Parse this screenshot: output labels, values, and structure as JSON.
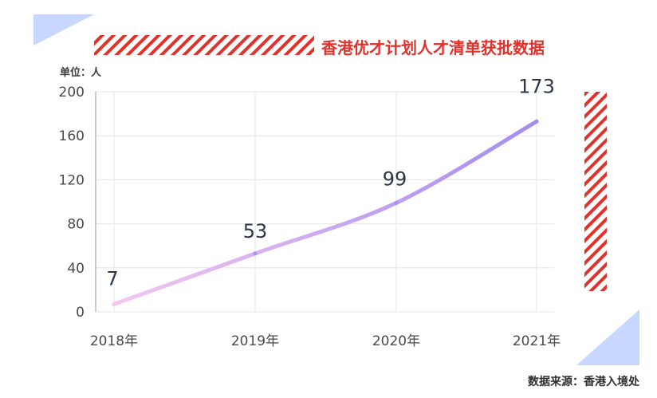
{
  "header": {
    "title": "香港优才计划人才清单获批数据",
    "unit_label": "单位：人"
  },
  "footer": {
    "source": "数据来源：香港入境处"
  },
  "colors": {
    "title_red": "#e0312b",
    "hatch_red": "#e0312b",
    "corner_blue": "#c7d7ff",
    "line_start": "#f4c7f1",
    "line_end": "#a48cf0",
    "axis_text": "#4a4a4a",
    "label_text": "#2b3548",
    "grid": "#e6e6e6"
  },
  "chart_data": {
    "type": "line",
    "title": "香港优才计划人才清单获批数据",
    "xlabel": "",
    "ylabel": "单位：人",
    "categories": [
      "2018年",
      "2019年",
      "2020年",
      "2021年"
    ],
    "values": [
      7,
      53,
      99,
      173
    ],
    "data_labels": [
      "7",
      "53",
      "99",
      "173"
    ],
    "yticks": [
      0,
      40,
      80,
      120,
      160,
      200
    ],
    "ytick_labels": [
      "0",
      "40",
      "80",
      "120",
      "160",
      "200"
    ],
    "ylim": [
      0,
      200
    ],
    "grid": true,
    "line_style": "smooth-gradient"
  }
}
